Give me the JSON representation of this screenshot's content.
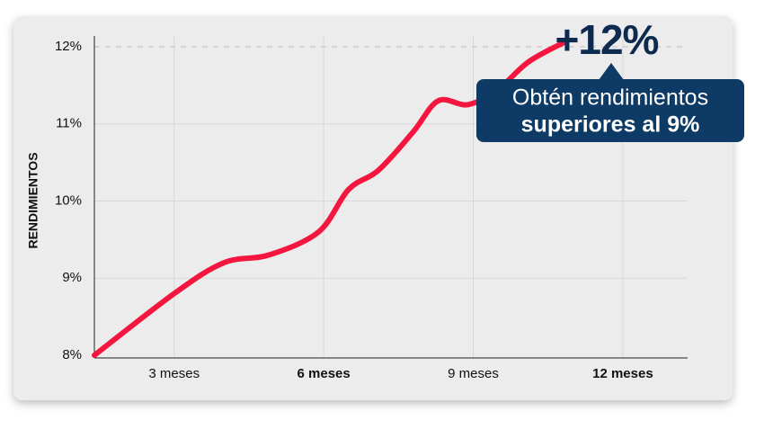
{
  "chart_data": {
    "type": "line",
    "y_axis_label": "RENDIMIENTOS",
    "x": [
      1.4,
      3.0,
      4.0,
      4.9,
      5.9,
      6.5,
      7.1,
      7.8,
      8.3,
      8.9,
      9.5,
      10.1,
      10.8
    ],
    "values": [
      8.0,
      8.8,
      9.2,
      9.3,
      9.6,
      10.15,
      10.4,
      10.9,
      11.3,
      11.25,
      11.45,
      11.8,
      12.05
    ],
    "color": "#f5163f",
    "xlim": [
      1.4,
      13.3
    ],
    "ylim": [
      8,
      12
    ],
    "xticks": [
      {
        "value": 3,
        "label": "3 meses"
      },
      {
        "value": 6,
        "label": "6 meses"
      },
      {
        "value": 9,
        "label": "9 meses"
      },
      {
        "value": 12,
        "label": "12 meses"
      }
    ],
    "yticks": [
      {
        "value": 8,
        "label": "8%"
      },
      {
        "value": 9,
        "label": "9%"
      },
      {
        "value": 10,
        "label": "10%"
      },
      {
        "value": 11,
        "label": "11%"
      },
      {
        "value": 12,
        "label": "12%"
      }
    ],
    "grid": true,
    "annotations": {
      "highlight": "+12%",
      "callout": [
        "Obtén rendimientos",
        "superiores al 9%"
      ]
    }
  }
}
